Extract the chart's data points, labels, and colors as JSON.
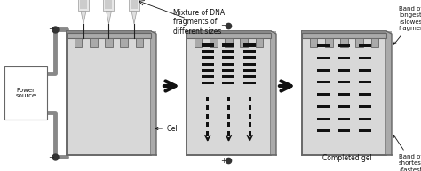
{
  "gel_color": "#cccccc",
  "gel_border_color": "#888888",
  "gel_side_color": "#aaaaaa",
  "comb_color": "#999999",
  "band_color": "#111111",
  "wire_color": "#888888",
  "text_color": "#111111",
  "title_text": "Mixture of DNA\nfragments of\ndifferent sizes",
  "label_gel": "Gel",
  "label_power": "Power\nsource",
  "label_completed": "Completed gel",
  "label_band_top": "Band of\nlongest\n(slowest)\nfragments",
  "label_band_bot": "Band of\nshortest\n(fastest)\nfragments",
  "fig_w": 4.74,
  "fig_h": 1.93
}
